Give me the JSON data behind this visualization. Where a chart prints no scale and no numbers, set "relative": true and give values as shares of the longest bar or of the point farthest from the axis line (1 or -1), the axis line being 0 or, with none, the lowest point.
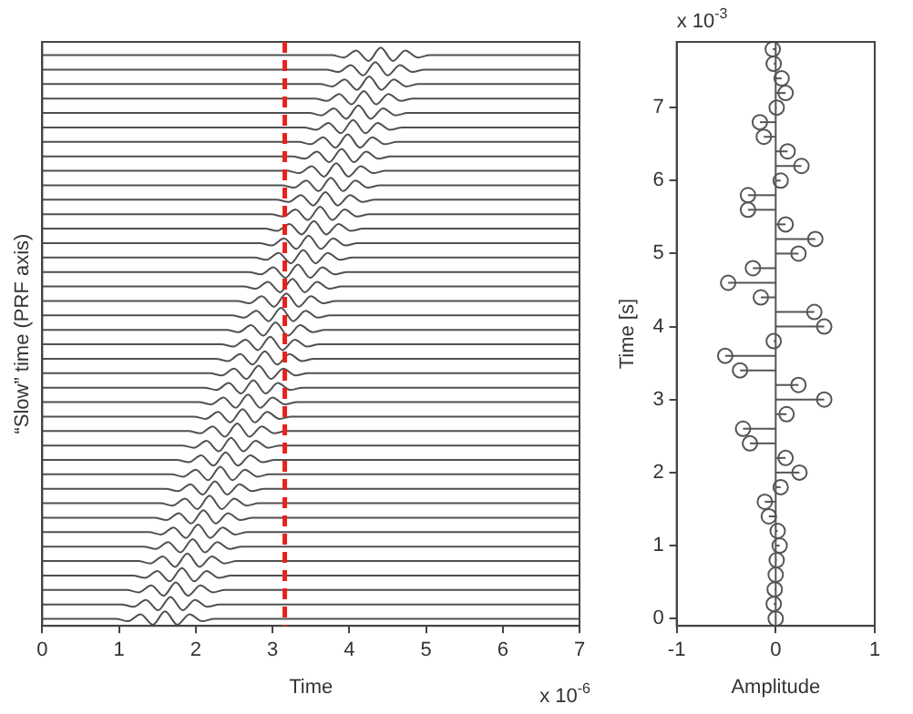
{
  "chart_data": [
    {
      "type": "line",
      "relative": true,
      "xlabel": "Time",
      "ylabel": "“Slow” time (PRF axis)",
      "annotations": [
        "x 10$^{-6}$"
      ],
      "xlim": [
        0,
        7
      ],
      "xticks": [
        0,
        1,
        2,
        3,
        4,
        5,
        6,
        7
      ],
      "marker": "none",
      "color": "#505050",
      "ref_lines": [
        {
          "axis": "x",
          "value": 3.16,
          "color": "#e8211d",
          "line_style": "dashed"
        }
      ],
      "series": [
        {
          "x": [
            0,
            0.96,
            1.12,
            1.28,
            1.44,
            1.6,
            1.76,
            1.92,
            2.08,
            2.24,
            7
          ],
          "values": [
            0.012,
            0.012,
            0.008,
            0.02,
            0.002,
            0.025,
            0.002,
            0.02,
            0.008,
            0.012,
            0.012
          ]
        },
        {
          "x": [
            0,
            1.03,
            1.19,
            1.35,
            1.51,
            1.67,
            1.83,
            1.99,
            2.15,
            2.31,
            7
          ],
          "values": [
            0.037,
            0.037,
            0.033,
            0.045,
            0.027,
            0.05,
            0.027,
            0.045,
            0.033,
            0.037,
            0.037
          ]
        },
        {
          "x": [
            0,
            1.1,
            1.26,
            1.42,
            1.58,
            1.74,
            1.9,
            2.06,
            2.22,
            2.38,
            7
          ],
          "values": [
            0.062,
            0.062,
            0.058,
            0.07,
            0.052,
            0.075,
            0.052,
            0.07,
            0.058,
            0.062,
            0.062
          ]
        },
        {
          "x": [
            0,
            1.18,
            1.34,
            1.5,
            1.66,
            1.82,
            1.98,
            2.14,
            2.3,
            2.46,
            7
          ],
          "values": [
            0.087,
            0.087,
            0.083,
            0.095,
            0.077,
            0.1,
            0.077,
            0.095,
            0.083,
            0.087,
            0.087
          ]
        },
        {
          "x": [
            0,
            1.25,
            1.41,
            1.57,
            1.73,
            1.89,
            2.05,
            2.21,
            2.37,
            2.53,
            7
          ],
          "values": [
            0.112,
            0.112,
            0.108,
            0.12,
            0.102,
            0.125,
            0.102,
            0.12,
            0.108,
            0.112,
            0.112
          ]
        },
        {
          "x": [
            0,
            1.32,
            1.48,
            1.64,
            1.8,
            1.96,
            2.12,
            2.28,
            2.44,
            2.6,
            7
          ],
          "values": [
            0.137,
            0.137,
            0.133,
            0.145,
            0.127,
            0.15,
            0.127,
            0.145,
            0.133,
            0.137,
            0.137
          ]
        },
        {
          "x": [
            0,
            1.39,
            1.55,
            1.71,
            1.87,
            2.03,
            2.19,
            2.35,
            2.51,
            2.67,
            7
          ],
          "values": [
            0.162,
            0.162,
            0.158,
            0.17,
            0.152,
            0.175,
            0.152,
            0.17,
            0.158,
            0.162,
            0.162
          ]
        },
        {
          "x": [
            0,
            1.46,
            1.62,
            1.78,
            1.94,
            2.1,
            2.26,
            2.42,
            2.58,
            2.74,
            7
          ],
          "values": [
            0.187,
            0.187,
            0.183,
            0.195,
            0.177,
            0.2,
            0.177,
            0.195,
            0.183,
            0.187,
            0.187
          ]
        },
        {
          "x": [
            0,
            1.54,
            1.7,
            1.86,
            2.02,
            2.18,
            2.34,
            2.5,
            2.66,
            2.82,
            7
          ],
          "values": [
            0.212,
            0.212,
            0.208,
            0.22,
            0.202,
            0.225,
            0.202,
            0.22,
            0.208,
            0.212,
            0.212
          ]
        },
        {
          "x": [
            0,
            1.61,
            1.77,
            1.93,
            2.09,
            2.25,
            2.41,
            2.57,
            2.73,
            2.89,
            7
          ],
          "values": [
            0.237,
            0.237,
            0.233,
            0.245,
            0.227,
            0.25,
            0.227,
            0.245,
            0.233,
            0.237,
            0.237
          ]
        },
        {
          "x": [
            0,
            1.68,
            1.84,
            2.0,
            2.16,
            2.32,
            2.48,
            2.64,
            2.8,
            2.96,
            7
          ],
          "values": [
            0.262,
            0.262,
            0.258,
            0.27,
            0.252,
            0.275,
            0.252,
            0.27,
            0.258,
            0.262,
            0.262
          ]
        },
        {
          "x": [
            0,
            1.75,
            1.91,
            2.07,
            2.23,
            2.39,
            2.55,
            2.71,
            2.87,
            3.03,
            7
          ],
          "values": [
            0.287,
            0.287,
            0.283,
            0.295,
            0.277,
            0.3,
            0.277,
            0.295,
            0.283,
            0.287,
            0.287
          ]
        },
        {
          "x": [
            0,
            1.82,
            1.98,
            2.14,
            2.3,
            2.46,
            2.62,
            2.78,
            2.94,
            3.1,
            7
          ],
          "values": [
            0.312,
            0.312,
            0.308,
            0.32,
            0.302,
            0.325,
            0.302,
            0.32,
            0.308,
            0.312,
            0.312
          ]
        },
        {
          "x": [
            0,
            1.9,
            2.06,
            2.22,
            2.38,
            2.54,
            2.7,
            2.86,
            3.02,
            3.18,
            7
          ],
          "values": [
            0.337,
            0.337,
            0.333,
            0.345,
            0.327,
            0.35,
            0.327,
            0.345,
            0.333,
            0.337,
            0.337
          ]
        },
        {
          "x": [
            0,
            1.97,
            2.13,
            2.29,
            2.45,
            2.61,
            2.77,
            2.93,
            3.09,
            3.25,
            7
          ],
          "values": [
            0.362,
            0.362,
            0.358,
            0.37,
            0.352,
            0.375,
            0.352,
            0.37,
            0.358,
            0.362,
            0.362
          ]
        },
        {
          "x": [
            0,
            2.04,
            2.2,
            2.36,
            2.52,
            2.68,
            2.84,
            3.0,
            3.16,
            3.32,
            7
          ],
          "values": [
            0.387,
            0.387,
            0.383,
            0.395,
            0.377,
            0.4,
            0.377,
            0.395,
            0.383,
            0.387,
            0.387
          ]
        },
        {
          "x": [
            0,
            2.11,
            2.27,
            2.43,
            2.59,
            2.75,
            2.91,
            3.07,
            3.23,
            3.39,
            7
          ],
          "values": [
            0.412,
            0.412,
            0.408,
            0.42,
            0.402,
            0.425,
            0.402,
            0.42,
            0.408,
            0.412,
            0.412
          ]
        },
        {
          "x": [
            0,
            2.18,
            2.34,
            2.5,
            2.66,
            2.82,
            2.98,
            3.14,
            3.3,
            3.46,
            7
          ],
          "values": [
            0.437,
            0.437,
            0.433,
            0.445,
            0.427,
            0.45,
            0.427,
            0.445,
            0.433,
            0.437,
            0.437
          ]
        },
        {
          "x": [
            0,
            2.26,
            2.42,
            2.58,
            2.74,
            2.9,
            3.06,
            3.22,
            3.38,
            3.54,
            7
          ],
          "values": [
            0.462,
            0.462,
            0.458,
            0.47,
            0.452,
            0.475,
            0.452,
            0.47,
            0.458,
            0.462,
            0.462
          ]
        },
        {
          "x": [
            0,
            2.33,
            2.49,
            2.65,
            2.81,
            2.97,
            3.13,
            3.29,
            3.45,
            3.61,
            7
          ],
          "values": [
            0.487,
            0.487,
            0.483,
            0.495,
            0.477,
            0.5,
            0.477,
            0.495,
            0.483,
            0.487,
            0.487
          ]
        },
        {
          "x": [
            0,
            2.4,
            2.56,
            2.72,
            2.88,
            3.04,
            3.2,
            3.36,
            3.52,
            3.68,
            7
          ],
          "values": [
            0.512,
            0.512,
            0.508,
            0.52,
            0.502,
            0.525,
            0.502,
            0.52,
            0.508,
            0.512,
            0.512
          ]
        },
        {
          "x": [
            0,
            2.47,
            2.63,
            2.79,
            2.95,
            3.11,
            3.27,
            3.43,
            3.59,
            3.75,
            7
          ],
          "values": [
            0.537,
            0.537,
            0.533,
            0.545,
            0.527,
            0.55,
            0.527,
            0.545,
            0.533,
            0.537,
            0.537
          ]
        },
        {
          "x": [
            0,
            2.54,
            2.7,
            2.86,
            3.02,
            3.18,
            3.34,
            3.5,
            3.66,
            3.82,
            7
          ],
          "values": [
            0.562,
            0.562,
            0.558,
            0.57,
            0.552,
            0.575,
            0.552,
            0.57,
            0.558,
            0.562,
            0.562
          ]
        },
        {
          "x": [
            0,
            2.62,
            2.78,
            2.94,
            3.1,
            3.26,
            3.42,
            3.58,
            3.74,
            3.9,
            7
          ],
          "values": [
            0.587,
            0.587,
            0.583,
            0.595,
            0.577,
            0.6,
            0.577,
            0.595,
            0.583,
            0.587,
            0.587
          ]
        },
        {
          "x": [
            0,
            2.69,
            2.85,
            3.01,
            3.17,
            3.33,
            3.49,
            3.65,
            3.81,
            3.97,
            7
          ],
          "values": [
            0.612,
            0.612,
            0.608,
            0.62,
            0.602,
            0.625,
            0.602,
            0.62,
            0.608,
            0.612,
            0.612
          ]
        },
        {
          "x": [
            0,
            2.76,
            2.92,
            3.08,
            3.24,
            3.4,
            3.56,
            3.72,
            3.88,
            4.04,
            7
          ],
          "values": [
            0.637,
            0.637,
            0.633,
            0.645,
            0.627,
            0.65,
            0.627,
            0.645,
            0.633,
            0.637,
            0.637
          ]
        },
        {
          "x": [
            0,
            2.83,
            2.99,
            3.15,
            3.31,
            3.47,
            3.63,
            3.79,
            3.95,
            4.11,
            7
          ],
          "values": [
            0.662,
            0.662,
            0.658,
            0.67,
            0.652,
            0.675,
            0.652,
            0.67,
            0.658,
            0.662,
            0.662
          ]
        },
        {
          "x": [
            0,
            2.9,
            3.06,
            3.22,
            3.38,
            3.54,
            3.7,
            3.86,
            4.02,
            4.18,
            7
          ],
          "values": [
            0.687,
            0.687,
            0.683,
            0.695,
            0.677,
            0.7,
            0.677,
            0.695,
            0.683,
            0.687,
            0.687
          ]
        },
        {
          "x": [
            0,
            2.98,
            3.14,
            3.3,
            3.46,
            3.62,
            3.78,
            3.94,
            4.1,
            4.26,
            7
          ],
          "values": [
            0.712,
            0.712,
            0.708,
            0.72,
            0.702,
            0.725,
            0.702,
            0.72,
            0.708,
            0.712,
            0.712
          ]
        },
        {
          "x": [
            0,
            3.05,
            3.21,
            3.37,
            3.53,
            3.69,
            3.85,
            4.01,
            4.17,
            4.33,
            7
          ],
          "values": [
            0.737,
            0.737,
            0.733,
            0.745,
            0.727,
            0.75,
            0.727,
            0.745,
            0.733,
            0.737,
            0.737
          ]
        },
        {
          "x": [
            0,
            3.12,
            3.28,
            3.44,
            3.6,
            3.76,
            3.92,
            4.08,
            4.24,
            4.4,
            7
          ],
          "values": [
            0.762,
            0.762,
            0.758,
            0.77,
            0.752,
            0.775,
            0.752,
            0.77,
            0.758,
            0.762,
            0.762
          ]
        },
        {
          "x": [
            0,
            3.19,
            3.35,
            3.51,
            3.67,
            3.83,
            3.99,
            4.15,
            4.31,
            4.47,
            7
          ],
          "values": [
            0.787,
            0.787,
            0.783,
            0.795,
            0.777,
            0.8,
            0.777,
            0.795,
            0.783,
            0.787,
            0.787
          ]
        },
        {
          "x": [
            0,
            3.26,
            3.42,
            3.58,
            3.74,
            3.9,
            4.06,
            4.22,
            4.38,
            4.54,
            7
          ],
          "values": [
            0.812,
            0.812,
            0.808,
            0.82,
            0.802,
            0.825,
            0.802,
            0.82,
            0.808,
            0.812,
            0.812
          ]
        },
        {
          "x": [
            0,
            3.34,
            3.5,
            3.66,
            3.82,
            3.98,
            4.14,
            4.3,
            4.46,
            4.62,
            7
          ],
          "values": [
            0.837,
            0.837,
            0.833,
            0.845,
            0.827,
            0.85,
            0.827,
            0.845,
            0.833,
            0.837,
            0.837
          ]
        },
        {
          "x": [
            0,
            3.41,
            3.57,
            3.73,
            3.89,
            4.05,
            4.21,
            4.37,
            4.53,
            4.69,
            7
          ],
          "values": [
            0.862,
            0.862,
            0.858,
            0.87,
            0.852,
            0.875,
            0.852,
            0.87,
            0.858,
            0.862,
            0.862
          ]
        },
        {
          "x": [
            0,
            3.48,
            3.64,
            3.8,
            3.96,
            4.12,
            4.28,
            4.44,
            4.6,
            4.76,
            7
          ],
          "values": [
            0.887,
            0.887,
            0.883,
            0.895,
            0.877,
            0.9,
            0.877,
            0.895,
            0.883,
            0.887,
            0.887
          ]
        },
        {
          "x": [
            0,
            3.55,
            3.71,
            3.87,
            4.03,
            4.19,
            4.35,
            4.51,
            4.67,
            4.83,
            7
          ],
          "values": [
            0.912,
            0.912,
            0.908,
            0.92,
            0.902,
            0.925,
            0.902,
            0.92,
            0.908,
            0.912,
            0.912
          ]
        },
        {
          "x": [
            0,
            3.62,
            3.78,
            3.94,
            4.1,
            4.26,
            4.42,
            4.58,
            4.74,
            4.9,
            7
          ],
          "values": [
            0.937,
            0.937,
            0.933,
            0.945,
            0.927,
            0.95,
            0.927,
            0.945,
            0.933,
            0.937,
            0.937
          ]
        },
        {
          "x": [
            0,
            3.7,
            3.86,
            4.02,
            4.18,
            4.34,
            4.5,
            4.66,
            4.82,
            4.98,
            7
          ],
          "values": [
            0.962,
            0.962,
            0.958,
            0.97,
            0.952,
            0.975,
            0.952,
            0.97,
            0.958,
            0.962,
            0.962
          ]
        },
        {
          "x": [
            0,
            3.77,
            3.93,
            4.09,
            4.25,
            4.41,
            4.57,
            4.73,
            4.89,
            5.05,
            7
          ],
          "values": [
            0.987,
            0.987,
            0.983,
            0.995,
            0.977,
            1,
            0.977,
            0.995,
            0.983,
            0.987,
            0.987
          ]
        }
      ]
    },
    {
      "type": "lollipop",
      "orientation": "horizontal",
      "xlabel": "Amplitude",
      "ylabel": "Time [s]",
      "annotations": [
        "x 10$^{-3}$"
      ],
      "xlim": [
        -1,
        1
      ],
      "xticks": [
        -1,
        0,
        1
      ],
      "ylim": [
        -0.1,
        7.9
      ],
      "yticks": [
        0,
        1,
        2,
        3,
        4,
        5,
        6,
        7
      ],
      "marker": "circle",
      "color": "#555555",
      "x": [
        0,
        0.2,
        0.4,
        0.6,
        0.8,
        1.0,
        1.2,
        1.4,
        1.6,
        1.8,
        2.0,
        2.2,
        2.4,
        2.6,
        2.8,
        3.0,
        3.2,
        3.4,
        3.6,
        3.8,
        4.0,
        4.2,
        4.4,
        4.6,
        4.8,
        5.0,
        5.2,
        5.4,
        5.6,
        5.8,
        6.0,
        6.2,
        6.4,
        6.6,
        6.8,
        7.0,
        7.2,
        7.4,
        7.6,
        7.8
      ],
      "values": [
        0,
        -0.02,
        -0.01,
        0,
        0.01,
        0.04,
        0.02,
        -0.07,
        -0.11,
        0.05,
        0.24,
        0.1,
        -0.26,
        -0.33,
        0.11,
        0.49,
        0.23,
        -0.36,
        -0.51,
        -0.02,
        0.49,
        0.39,
        -0.15,
        -0.48,
        -0.23,
        0.23,
        0.4,
        0.1,
        -0.28,
        -0.28,
        0.05,
        0.26,
        0.12,
        -0.12,
        -0.16,
        0.01,
        0.1,
        0.06,
        -0.02,
        -0.03
      ]
    }
  ]
}
